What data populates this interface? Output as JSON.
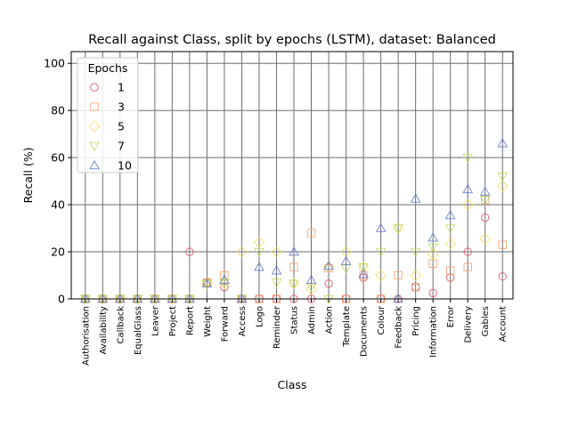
{
  "chart_data": {
    "type": "scatter",
    "title": "Recall against Class, split by epochs (LSTM), dataset: Balanced",
    "xlabel": "Class",
    "ylabel": "Recall (%)",
    "ylim": [
      0,
      105
    ],
    "yticks": [
      "0",
      "20",
      "40",
      "60",
      "80",
      "100"
    ],
    "grid": true,
    "legend": {
      "title": "Epochs",
      "placement": "top-left"
    },
    "categories": [
      "Authorisation",
      "Availability",
      "Callback",
      "EqualGlass",
      "Leaver",
      "Project",
      "Report",
      "Weight",
      "Forward",
      "Access",
      "Logo",
      "Reminder",
      "Status",
      "Admin",
      "Action",
      "Template",
      "Documents",
      "Colour",
      "Feedback",
      "Pricing",
      "Information",
      "Error",
      "Delivery",
      "Gables",
      "Account"
    ],
    "series": [
      {
        "name": "1",
        "marker": "circle",
        "color": "#d9465a",
        "values": [
          0,
          0,
          0,
          0,
          0,
          0,
          20,
          7,
          5,
          0,
          0,
          0,
          0,
          0,
          6.5,
          0,
          9,
          0,
          0,
          5,
          2.5,
          9,
          20,
          34.5,
          9.5
        ]
      },
      {
        "name": "3",
        "marker": "square",
        "color": "#f39c6b",
        "values": [
          0,
          0,
          0,
          0,
          0,
          0,
          0,
          7,
          10,
          0,
          0,
          0,
          13.5,
          28,
          13,
          0,
          10,
          0,
          10,
          5,
          15,
          12,
          13.5,
          42,
          23
        ]
      },
      {
        "name": "5",
        "marker": "diamond",
        "color": "#f2dc5d",
        "values": [
          0,
          0,
          0,
          0,
          0,
          0,
          0,
          6.5,
          6.5,
          20,
          24,
          20,
          6.5,
          4,
          13.5,
          20,
          13.5,
          10,
          30,
          10,
          19,
          23.5,
          40,
          25.5,
          48
        ]
      },
      {
        "name": "7",
        "marker": "triangle-down",
        "color": "#b9d95a",
        "values": [
          0,
          0,
          0,
          0,
          0,
          0,
          0,
          6.5,
          7,
          0,
          20,
          7,
          6.5,
          5,
          0,
          13,
          13.5,
          20,
          30,
          20,
          22,
          30,
          60,
          42,
          52
        ]
      },
      {
        "name": "10",
        "marker": "triangle-up",
        "color": "#5a73c8",
        "values": [
          0,
          0,
          0,
          0,
          0,
          0,
          0,
          6.5,
          8,
          0,
          13.5,
          12,
          20,
          8,
          14,
          16,
          10.5,
          30,
          0,
          42.5,
          26,
          35.5,
          46.5,
          45.5,
          66
        ]
      }
    ]
  }
}
